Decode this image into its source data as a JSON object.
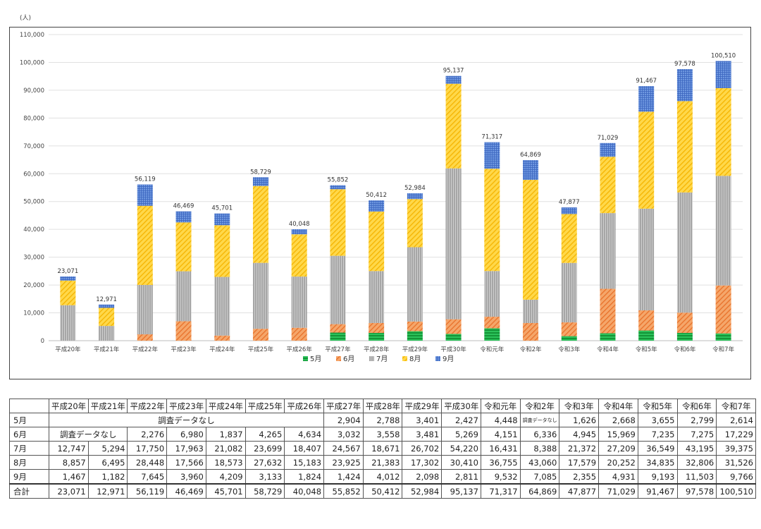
{
  "unit_label": "(人)",
  "chart_data": {
    "type": "bar",
    "stacked": true,
    "categories": [
      "平成20年",
      "平成21年",
      "平成22年",
      "平成23年",
      "平成24年",
      "平成25年",
      "平成26年",
      "平成27年",
      "平成28年",
      "平成29年",
      "平成30年",
      "令和元年",
      "令和2年",
      "令和3年",
      "令和4年",
      "令和5年",
      "令和6年",
      "令和7年"
    ],
    "series": [
      {
        "name": "5月",
        "color": "#22b14c",
        "pattern": "hlines",
        "values": [
          0,
          0,
          0,
          0,
          0,
          0,
          0,
          2904,
          2788,
          3401,
          2427,
          4448,
          0,
          1626,
          2668,
          3655,
          2799,
          2614
        ]
      },
      {
        "name": "6月",
        "color": "#f0883a",
        "pattern": "diag",
        "values": [
          0,
          0,
          2276,
          6980,
          1837,
          4265,
          4634,
          3032,
          3558,
          3481,
          5269,
          4151,
          6336,
          4945,
          15969,
          7235,
          7275,
          17229
        ]
      },
      {
        "name": "7月",
        "color": "#9e9e9e",
        "pattern": "vlines",
        "values": [
          12747,
          5294,
          17750,
          17963,
          21082,
          23699,
          18407,
          24567,
          18671,
          26702,
          54220,
          16431,
          8388,
          21372,
          27209,
          36549,
          43195,
          39375
        ]
      },
      {
        "name": "8月",
        "color": "#ffc20e",
        "pattern": "diag",
        "values": [
          8857,
          6495,
          28448,
          17566,
          18573,
          27632,
          15183,
          23925,
          21383,
          17302,
          30410,
          36755,
          43060,
          17579,
          20252,
          34835,
          32806,
          31526
        ]
      },
      {
        "name": "9月",
        "color": "#4a7bd0",
        "pattern": "grid",
        "values": [
          1467,
          1182,
          7645,
          3960,
          4209,
          3133,
          1824,
          1424,
          4012,
          2098,
          2811,
          9532,
          7085,
          2355,
          4931,
          9193,
          11503,
          9766
        ]
      }
    ],
    "totals": [
      23071,
      12971,
      56119,
      46469,
      45701,
      58729,
      40048,
      55852,
      50412,
      52984,
      95137,
      71317,
      64869,
      47877,
      71029,
      91467,
      97578,
      100510
    ],
    "total_labels": [
      "23,071",
      "12,971",
      "56,119",
      "46,469",
      "45,701",
      "58,729",
      "40,048",
      "55,852",
      "50,412",
      "52,984",
      "95,137",
      "71,317",
      "64,869",
      "47,877",
      "71,029",
      "91,467",
      "97,578",
      "100,510"
    ],
    "ylim": [
      0,
      110000
    ],
    "yticks": [
      "0",
      "10,000",
      "20,000",
      "30,000",
      "40,000",
      "50,000",
      "60,000",
      "70,000",
      "80,000",
      "90,000",
      "100,000",
      "110,000"
    ],
    "grid": true,
    "legend_position": "bottom",
    "title": "",
    "xlabel": "",
    "ylabel": "(人)"
  },
  "table": {
    "headers": [
      "平成20年",
      "平成21年",
      "平成22年",
      "平成23年",
      "平成24年",
      "平成25年",
      "平成26年",
      "平成27年",
      "平成28年",
      "平成29年",
      "平成30年",
      "令和元年",
      "令和2年",
      "令和3年",
      "令和4年",
      "令和5年",
      "令和6年",
      "令和7年"
    ],
    "no_data_long": "調査データなし",
    "no_data_short": "調査データなし",
    "rows": {
      "may": {
        "label": "5月",
        "values": [
          "2,904",
          "2,788",
          "3,401",
          "2,427",
          "4,448",
          "",
          "1,626",
          "2,668",
          "3,655",
          "2,799",
          "2,614"
        ]
      },
      "june": {
        "label": "6月",
        "values": [
          "2,276",
          "6,980",
          "1,837",
          "4,265",
          "4,634",
          "3,032",
          "3,558",
          "3,481",
          "5,269",
          "4,151",
          "6,336",
          "4,945",
          "15,969",
          "7,235",
          "7,275",
          "17,229"
        ]
      },
      "july": {
        "label": "7月",
        "values": [
          "12,747",
          "5,294",
          "17,750",
          "17,963",
          "21,082",
          "23,699",
          "18,407",
          "24,567",
          "18,671",
          "26,702",
          "54,220",
          "16,431",
          "8,388",
          "21,372",
          "27,209",
          "36,549",
          "43,195",
          "39,375"
        ]
      },
      "aug": {
        "label": "8月",
        "values": [
          "8,857",
          "6,495",
          "28,448",
          "17,566",
          "18,573",
          "27,632",
          "15,183",
          "23,925",
          "21,383",
          "17,302",
          "30,410",
          "36,755",
          "43,060",
          "17,579",
          "20,252",
          "34,835",
          "32,806",
          "31,526"
        ]
      },
      "sep": {
        "label": "9月",
        "values": [
          "1,467",
          "1,182",
          "7,645",
          "3,960",
          "4,209",
          "3,133",
          "1,824",
          "1,424",
          "4,012",
          "2,098",
          "2,811",
          "9,532",
          "7,085",
          "2,355",
          "4,931",
          "9,193",
          "11,503",
          "9,766"
        ]
      },
      "total": {
        "label": "合計",
        "values": [
          "23,071",
          "12,971",
          "56,119",
          "46,469",
          "45,701",
          "58,729",
          "40,048",
          "55,852",
          "50,412",
          "52,984",
          "95,137",
          "71,317",
          "64,869",
          "47,877",
          "71,029",
          "91,467",
          "97,578",
          "100,510"
        ]
      }
    }
  }
}
